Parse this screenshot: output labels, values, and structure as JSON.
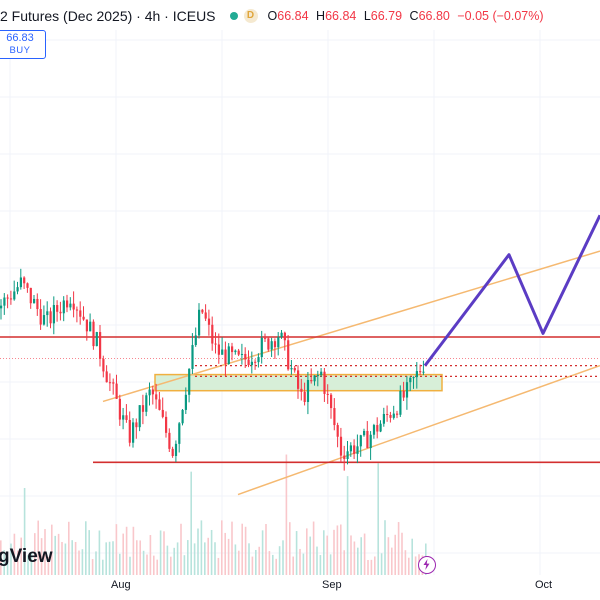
{
  "header": {
    "title": "2 Futures (Dec 2025) · 4h · ICEUS",
    "status_badge": "D",
    "ohlc": [
      {
        "key": "O",
        "value": "66.84"
      },
      {
        "key": "H",
        "value": "66.84"
      },
      {
        "key": "L",
        "value": "66.79"
      },
      {
        "key": "C",
        "value": "66.80"
      }
    ],
    "change": "−0.05 (−0.07%)"
  },
  "trade": {
    "price": "66.83",
    "label": "BUY"
  },
  "brand": "gView",
  "colors": {
    "up": "#089981",
    "down": "#f23645",
    "level": "#d32f2f",
    "channel": "#f5b971",
    "projection": "#5b3cc4",
    "zone_fill": "#d7efd8",
    "zone_border": "#f0b040"
  },
  "chart_data": {
    "type": "candlestick",
    "symbol": "2 Futures (Dec 2025)",
    "interval": "4h",
    "exchange": "ICEUS",
    "x_tick_labels": [
      "Aug",
      "Sep",
      "Oct"
    ],
    "candles_summary": [
      {
        "period": "mid-Jul",
        "open": 68.3,
        "high": 69.1,
        "low": 67.4,
        "close": 68.7
      },
      {
        "period": "late-Jul",
        "open": 68.7,
        "high": 68.9,
        "low": 65.5,
        "close": 65.9
      },
      {
        "period": "early-Aug",
        "open": 65.9,
        "high": 66.9,
        "low": 64.0,
        "close": 65.3
      },
      {
        "period": "mid-Aug",
        "open": 65.3,
        "high": 68.3,
        "low": 65.0,
        "close": 67.2
      },
      {
        "period": "late-Aug",
        "open": 67.2,
        "high": 67.7,
        "low": 64.8,
        "close": 65.5
      },
      {
        "period": "early-Sep",
        "open": 65.5,
        "high": 65.9,
        "low": 63.9,
        "close": 64.7
      },
      {
        "period": "mid-Sep",
        "open": 64.7,
        "high": 66.9,
        "low": 64.6,
        "close": 66.8
      }
    ],
    "horizontal_levels": [
      {
        "price": 67.4,
        "style": "solid"
      },
      {
        "price": 66.6,
        "style": "dotted"
      },
      {
        "price": 66.3,
        "style": "dotted"
      },
      {
        "price": 63.9,
        "style": "solid"
      }
    ],
    "current_price": 66.8,
    "volume": "shown as bars along bottom",
    "grid": true
  }
}
